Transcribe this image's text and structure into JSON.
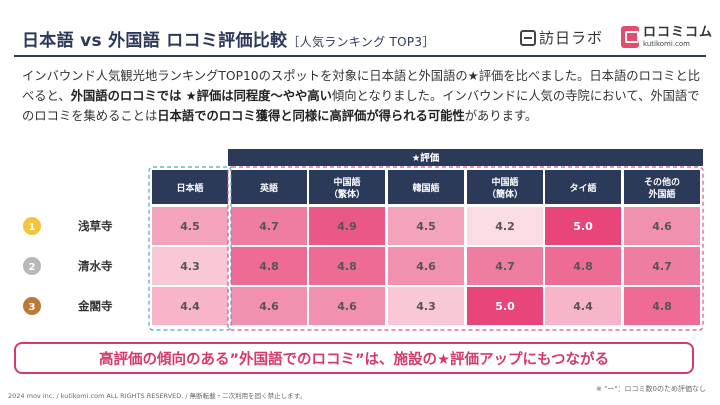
{
  "header": {
    "title_main": "日本語 vs 外国語 ロコミ評価比較",
    "title_sub": "［人気ランキング TOP3］",
    "logo1_text": "訪日ラボ",
    "logo2_text": "ロコミコム",
    "logo2_sub": "kutikomi.com"
  },
  "intro": {
    "t1": "インバウンド人気観光地ランキングTOP10のスポットを対象に日本語と外国語の★評価を比べました。日本語のロコミと比べると、",
    "b1": "外国語のロコミでは ★評価は同程度〜やや高い",
    "t2": "傾向となりました。インバウンドに人気の寺院において、外国語でのロコミを集めることは",
    "b2": "日本語でのロコミ獲得と同様に高評価が得られる可能性",
    "t3": "があります。"
  },
  "chart_data": {
    "type": "table",
    "title": "★評価",
    "columns": [
      "日本語",
      "英語",
      "中国語\n（繁体）",
      "韓国語",
      "中国語\n（簡体）",
      "タイ語",
      "その他の\n外国語"
    ],
    "rows": [
      {
        "rank": "1",
        "name": "浅草寺",
        "values": [
          4.5,
          4.7,
          4.9,
          4.5,
          4.2,
          5.0,
          4.6
        ]
      },
      {
        "rank": "2",
        "name": "清水寺",
        "values": [
          4.3,
          4.8,
          4.8,
          4.6,
          4.7,
          4.8,
          4.7
        ]
      },
      {
        "rank": "3",
        "name": "金閣寺",
        "values": [
          4.4,
          4.6,
          4.6,
          4.3,
          5.0,
          4.4,
          4.8
        ]
      }
    ],
    "color_scale": {
      "min": 4.2,
      "max": 5.0,
      "low_color": "#fbdbe4",
      "high_color": "#e8457a"
    },
    "header_color": "#2c3a5a",
    "rank_colors": [
      "#f2c53d",
      "#b8b8b8",
      "#b97a3a"
    ],
    "japanese_border_color": "#4aa5c8",
    "foreign_border_color": "#e0508a"
  },
  "callout": "高評価の傾向のある”外国語でのロコミ”は、施設の★評価アップにもつながる",
  "footer": {
    "left": "2024 mov inc. / kutikomi.com ALL RIGHTS RESERVED. / 無断転載・二次利用を固く禁止します。",
    "right": "※ \"ー\"：ロコミ数0のため評価なし"
  }
}
